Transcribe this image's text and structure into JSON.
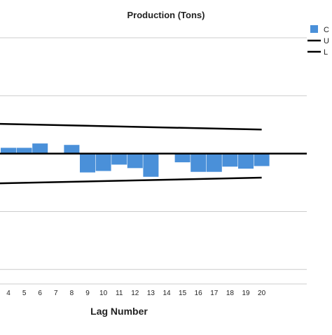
{
  "chart_data": {
    "type": "bar",
    "title": "Production (Tons)",
    "xlabel": "Lag Number",
    "ylabel": "",
    "categories": [
      "4",
      "5",
      "6",
      "7",
      "8",
      "9",
      "10",
      "11",
      "12",
      "13",
      "14",
      "15",
      "16",
      "17",
      "18",
      "19",
      "20"
    ],
    "series": [
      {
        "name": "C",
        "values": [
          0.02,
          0.02,
          0.035,
          0,
          0.03,
          -0.065,
          -0.06,
          -0.038,
          -0.05,
          -0.08,
          0,
          -0.03,
          -0.063,
          -0.063,
          -0.045,
          -0.052,
          -0.043
        ]
      }
    ],
    "upper_limit": {
      "name": "U",
      "values": [
        0.102,
        0.1,
        0.099,
        0.097,
        0.095,
        0.094,
        0.093,
        0.091,
        0.09,
        0.089,
        0.088,
        0.087,
        0.086,
        0.085,
        0.085,
        0.084,
        0.083
      ]
    },
    "lower_limit": {
      "name": "L",
      "values": [
        -0.102,
        -0.1,
        -0.099,
        -0.097,
        -0.095,
        -0.094,
        -0.093,
        -0.091,
        -0.09,
        -0.089,
        -0.088,
        -0.087,
        -0.086,
        -0.085,
        -0.085,
        -0.084,
        -0.083
      ]
    },
    "ylim": [
      -0.45,
      0.4
    ],
    "grid": true,
    "legend": "top-right",
    "colors": {
      "bar": "#4a90d9",
      "limit": "#000000",
      "grid": "#cccccc",
      "zero": "#000000"
    }
  }
}
